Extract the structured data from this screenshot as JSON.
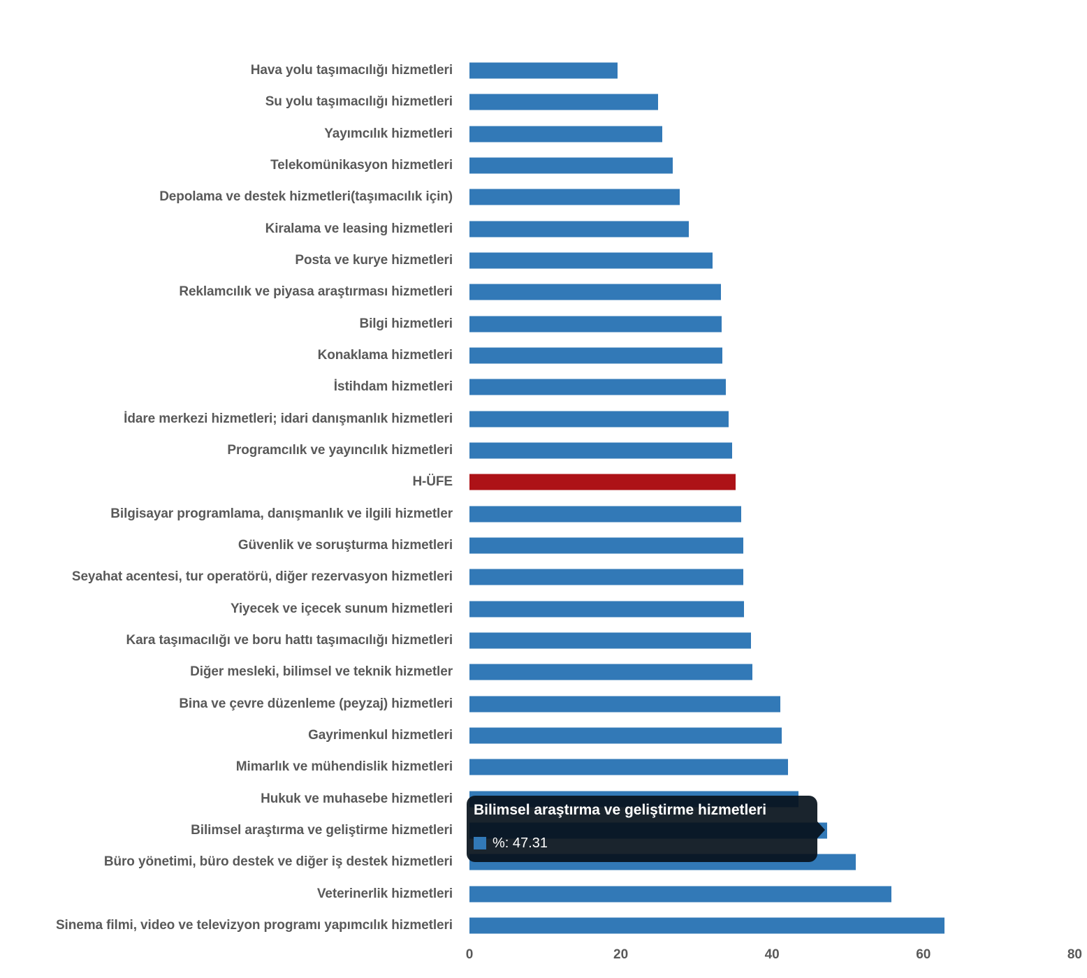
{
  "chart_data": {
    "type": "bar",
    "orientation": "horizontal",
    "title": "",
    "xlabel": "",
    "ylabel": "",
    "grid": false,
    "legend_position": "none",
    "xlim": [
      0,
      80
    ],
    "x_tick_labels": [
      "0",
      "20",
      "40",
      "60",
      "80"
    ],
    "x_tick_values": [
      0,
      20,
      40,
      60,
      80
    ],
    "bar_color": "#3279b7",
    "highlight_color": "#ad1217",
    "highlight_category": "H-ÜFE",
    "categories": [
      "Hava yolu taşımacılığı hizmetleri",
      "Su yolu taşımacılığı hizmetleri",
      "Yayımcılık hizmetleri",
      "Telekomünikasyon hizmetleri",
      "Depolama ve destek hizmetleri(taşımacılık için)",
      "Kiralama ve leasing hizmetleri",
      "Posta ve kurye hizmetleri",
      "Reklamcılık ve piyasa araştırması hizmetleri",
      "Bilgi hizmetleri",
      "Konaklama hizmetleri",
      "İstihdam hizmetleri",
      "İdare merkezi hizmetleri; idari danışmanlık hizmetleri",
      "Programcılık ve yayıncılık hizmetleri",
      "H-ÜFE",
      "Bilgisayar programlama, danışmanlık ve ilgili hizmetler",
      "Güvenlik ve soruşturma hizmetleri",
      "Seyahat acentesi, tur operatörü, diğer rezervasyon hizmetleri",
      "Yiyecek ve içecek sunum hizmetleri",
      "Kara taşımacılığı ve boru hattı taşımacılığı hizmetleri",
      "Diğer mesleki, bilimsel ve teknik hizmetler",
      "Bina ve çevre düzenleme (peyzaj) hizmetleri",
      "Gayrimenkul hizmetleri",
      "Mimarlık ve mühendislik hizmetleri",
      "Hukuk ve muhasebe hizmetleri",
      "Bilimsel araştırma ve geliştirme hizmetleri",
      "Büro yönetimi, büro destek ve diğer iş destek hizmetleri",
      "Veterinerlik hizmetleri",
      "Sinema filmi, video ve televizyon programı yapımcılık hizmetleri"
    ],
    "values": [
      19.6,
      24.9,
      25.5,
      26.9,
      27.8,
      29.0,
      32.1,
      33.2,
      33.3,
      33.4,
      33.9,
      34.3,
      34.7,
      35.2,
      35.9,
      36.2,
      36.2,
      36.3,
      37.2,
      37.4,
      41.1,
      41.3,
      42.1,
      43.5,
      47.31,
      51.1,
      55.8,
      62.8
    ]
  },
  "tooltip": {
    "title": "Bilimsel araştırma ve geliştirme hizmetleri",
    "value_text": "%: 47.31",
    "series_name": "%",
    "value": "47.31",
    "marker_color": "#3279b7",
    "target_category_index": 24
  },
  "colors": {
    "background": "#ffffff",
    "label_gray": "#595959",
    "bar_blue": "#3279b7",
    "bar_red": "#ad1217",
    "tooltip_bg": "rgba(7,17,27,0.92)",
    "tooltip_text": "#ffffff"
  }
}
